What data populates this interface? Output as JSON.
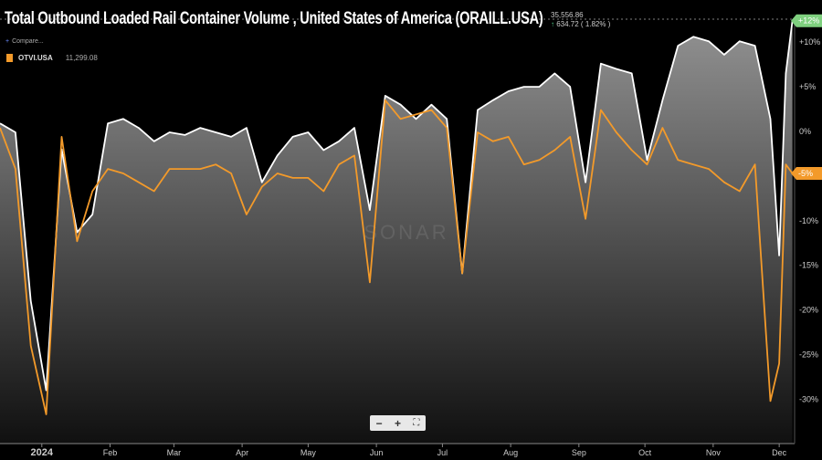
{
  "header": {
    "title": "Total Outbound Loaded Rail Container Volume , United States of America (ORAILL.USA)",
    "compare_label": "Compare...",
    "last_value": "35,556.86",
    "last_change": "634.72 ( 1.82% )"
  },
  "legend": [
    {
      "name": "OTVI.USA",
      "value": "11,299.08",
      "color": "#f39a2a"
    }
  ],
  "watermark": "SONAR",
  "zoom_controls": {
    "minus": "−",
    "plus": "+",
    "fit": "⛶"
  },
  "chart_data": {
    "type": "area",
    "title": "Total Outbound Loaded Rail Container Volume , United States of America (ORAILL.USA)",
    "xlabel": "",
    "ylabel": "",
    "y_unit": "%",
    "ylim": [
      -33,
      13
    ],
    "y_axis_position": "right",
    "grid": false,
    "x_ticks": [
      {
        "label": "2024",
        "date": "2024-01-01"
      },
      {
        "label": "Feb",
        "date": "2024-02-01"
      },
      {
        "label": "Mar",
        "date": "2024-03-01"
      },
      {
        "label": "Apr",
        "date": "2024-04-01"
      },
      {
        "label": "May",
        "date": "2024-05-01"
      },
      {
        "label": "Jun",
        "date": "2024-06-01"
      },
      {
        "label": "Jul",
        "date": "2024-07-01"
      },
      {
        "label": "Aug",
        "date": "2024-08-01"
      },
      {
        "label": "Sep",
        "date": "2024-09-01"
      },
      {
        "label": "Oct",
        "date": "2024-10-01"
      },
      {
        "label": "Nov",
        "date": "2024-11-01"
      },
      {
        "label": "Dec",
        "date": "2024-12-01"
      }
    ],
    "y_ticks": [
      {
        "label": "+10%",
        "value": 10
      },
      {
        "label": "+5%",
        "value": 5
      },
      {
        "label": "0%",
        "value": 0
      },
      {
        "label": "-10%",
        "value": -10
      },
      {
        "label": "-15%",
        "value": -15
      },
      {
        "label": "-20%",
        "value": -20
      },
      {
        "label": "-25%",
        "value": -25
      },
      {
        "label": "-30%",
        "value": -30
      }
    ],
    "x": [
      "2023-12-13",
      "2023-12-20",
      "2023-12-27",
      "2024-01-03",
      "2024-01-10",
      "2024-01-17",
      "2024-01-24",
      "2024-01-31",
      "2024-02-07",
      "2024-02-14",
      "2024-02-21",
      "2024-02-28",
      "2024-03-06",
      "2024-03-13",
      "2024-03-20",
      "2024-03-27",
      "2024-04-03",
      "2024-04-10",
      "2024-04-17",
      "2024-04-24",
      "2024-05-01",
      "2024-05-08",
      "2024-05-15",
      "2024-05-22",
      "2024-05-29",
      "2024-06-05",
      "2024-06-12",
      "2024-06-19",
      "2024-06-26",
      "2024-07-03",
      "2024-07-10",
      "2024-07-17",
      "2024-07-24",
      "2024-07-31",
      "2024-08-07",
      "2024-08-14",
      "2024-08-21",
      "2024-08-28",
      "2024-09-04",
      "2024-09-11",
      "2024-09-18",
      "2024-09-25",
      "2024-10-02",
      "2024-10-09",
      "2024-10-16",
      "2024-10-23",
      "2024-10-30",
      "2024-11-06",
      "2024-11-13",
      "2024-11-20",
      "2024-11-27",
      "2024-12-01",
      "2024-12-04",
      "2024-12-07"
    ],
    "series": [
      {
        "name": "ORAILL.USA",
        "color": "#ffffff",
        "fill": "area",
        "end_label": "+12%",
        "values": [
          0.9,
          -0.1,
          -19,
          -29,
          -2,
          -11.3,
          -9.3,
          0.9,
          1.4,
          0.4,
          -1.1,
          -0.1,
          -0.4,
          0.4,
          -0.1,
          -0.6,
          0.4,
          -5.7,
          -2.7,
          -0.6,
          -0.1,
          -2.1,
          -1.1,
          0.4,
          -8.8,
          4,
          3,
          1.4,
          3,
          1.4,
          -15.9,
          2.4,
          3.5,
          4.5,
          5,
          5,
          6.5,
          5,
          -5.7,
          7.6,
          7,
          6.5,
          -3.2,
          3.5,
          9.6,
          10.6,
          10.1,
          8.6,
          10.1,
          9.6,
          1.4,
          -13.9,
          6.5,
          12.4
        ]
      },
      {
        "name": "OTVI.USA",
        "color": "#f39a2a",
        "fill": "none",
        "end_label": "-5%",
        "values": [
          0.4,
          -4.2,
          -24,
          -31.7,
          -0.6,
          -12.3,
          -6.7,
          -4.2,
          -4.7,
          -5.7,
          -6.7,
          -4.2,
          -4.2,
          -4.2,
          -3.7,
          -4.7,
          -9.3,
          -6.2,
          -4.7,
          -5.2,
          -5.2,
          -6.7,
          -3.7,
          -2.7,
          -16.9,
          3.5,
          1.4,
          1.9,
          2.4,
          0.4,
          -15.9,
          -0.1,
          -1.1,
          -0.6,
          -3.7,
          -3.2,
          -2.1,
          -0.6,
          -9.8,
          2.4,
          -0.1,
          -2.1,
          -3.7,
          0.4,
          -3.2,
          -3.7,
          -4.2,
          -5.7,
          -6.7,
          -3.7,
          -30.2,
          -26,
          -3.7,
          -4.7
        ]
      }
    ],
    "legend_position": "top-left"
  }
}
